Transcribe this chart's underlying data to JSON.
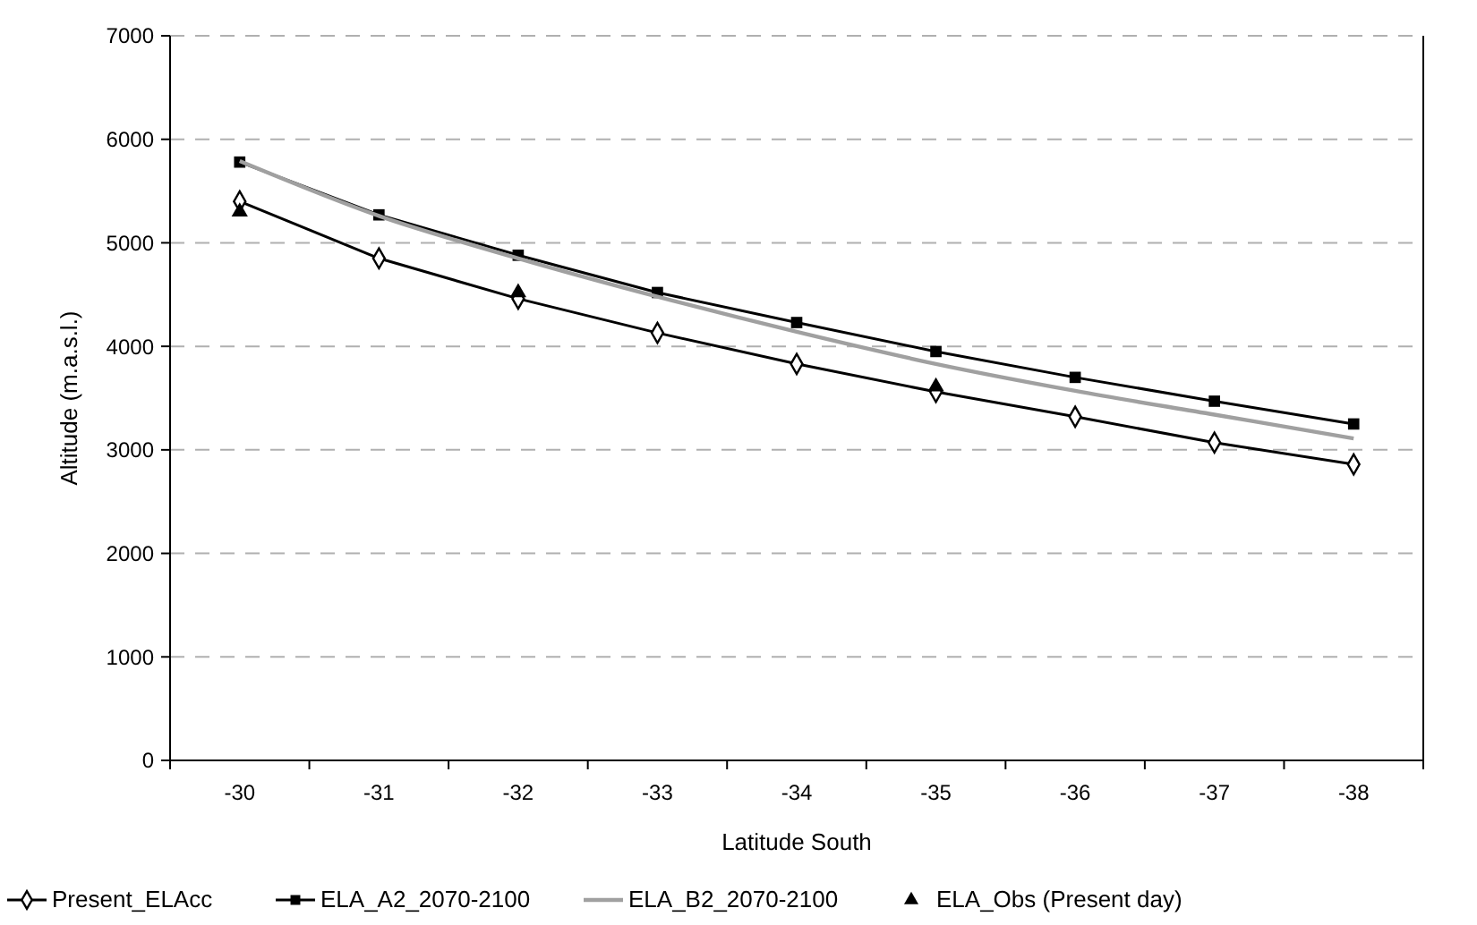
{
  "chart_data": {
    "type": "line",
    "xlabel": "Latitude South",
    "ylabel": "Altitude (m.a.s.l.)",
    "categories": [
      "-30",
      "-31",
      "-32",
      "-33",
      "-34",
      "-35",
      "-36",
      "-37",
      "-38"
    ],
    "ylim": [
      0,
      7000
    ],
    "yticks": [
      0,
      1000,
      2000,
      3000,
      4000,
      5000,
      6000,
      7000
    ],
    "grid": "y",
    "legend": "bottom",
    "series": [
      {
        "name": "Present_ELAcc",
        "color": "#000000",
        "marker": "diamond",
        "values": [
          5400,
          4850,
          4460,
          4130,
          3830,
          3560,
          3320,
          3070,
          2860
        ]
      },
      {
        "name": "ELA_A2_2070-2100",
        "color": "#000000",
        "marker": "square",
        "values": [
          5780,
          5270,
          4880,
          4520,
          4230,
          3950,
          3700,
          3470,
          3250
        ]
      },
      {
        "name": "ELA_B2_2070-2100",
        "color": "#a0a0a0",
        "marker": "none",
        "values": [
          5790,
          5260,
          4850,
          4480,
          4140,
          3830,
          3570,
          3340,
          3110
        ]
      },
      {
        "name": "ELA_Obs (Present day)",
        "type": "scatter",
        "color": "#000000",
        "marker": "triangle",
        "values": [
          5300,
          null,
          4520,
          null,
          null,
          3610,
          null,
          null,
          null
        ]
      }
    ]
  }
}
